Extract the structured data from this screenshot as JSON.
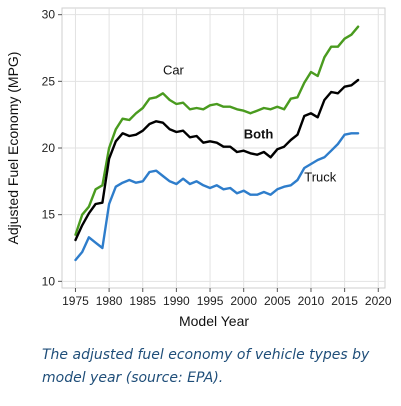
{
  "chart_data": {
    "type": "line",
    "xlabel": "Model Year",
    "ylabel": "Adjusted Fuel Economy (MPG)",
    "xlim": [
      1973,
      2021
    ],
    "ylim": [
      9.5,
      30.5
    ],
    "xticks": [
      1975,
      1980,
      1985,
      1990,
      1995,
      2000,
      2005,
      2010,
      2015,
      2020
    ],
    "yticks": [
      10,
      15,
      20,
      25,
      30
    ],
    "grid": true,
    "x": [
      1975,
      1976,
      1977,
      1978,
      1979,
      1980,
      1981,
      1982,
      1983,
      1984,
      1985,
      1986,
      1987,
      1988,
      1989,
      1990,
      1991,
      1992,
      1993,
      1994,
      1995,
      1996,
      1997,
      1998,
      1999,
      2000,
      2001,
      2002,
      2003,
      2004,
      2005,
      2006,
      2007,
      2008,
      2009,
      2010,
      2011,
      2012,
      2013,
      2014,
      2015,
      2016,
      2017
    ],
    "series": [
      {
        "name": "Car",
        "color": "#4a9b1f",
        "label_weight": "normal",
        "values": [
          13.5,
          15.0,
          15.6,
          16.9,
          17.2,
          20.0,
          21.4,
          22.2,
          22.1,
          22.6,
          23.0,
          23.7,
          23.8,
          24.1,
          23.6,
          23.3,
          23.4,
          22.9,
          23.0,
          22.9,
          23.2,
          23.3,
          23.1,
          23.1,
          22.9,
          22.8,
          22.6,
          22.8,
          23.0,
          22.9,
          23.1,
          22.9,
          23.7,
          23.8,
          24.9,
          25.7,
          25.4,
          26.8,
          27.6,
          27.6,
          28.2,
          28.5,
          29.1
        ]
      },
      {
        "name": "Both",
        "color": "#000000",
        "label_weight": "bold",
        "values": [
          13.1,
          14.2,
          15.1,
          15.8,
          15.9,
          19.2,
          20.5,
          21.1,
          20.9,
          21.0,
          21.3,
          21.8,
          22.0,
          21.9,
          21.4,
          21.2,
          21.3,
          20.8,
          20.9,
          20.4,
          20.5,
          20.4,
          20.1,
          20.1,
          19.7,
          19.8,
          19.6,
          19.5,
          19.7,
          19.3,
          19.9,
          20.1,
          20.6,
          21.0,
          22.4,
          22.6,
          22.3,
          23.6,
          24.2,
          24.1,
          24.6,
          24.7,
          25.1
        ]
      },
      {
        "name": "Truck",
        "color": "#2e7dcb",
        "label_weight": "normal",
        "values": [
          11.6,
          12.2,
          13.3,
          12.9,
          12.5,
          15.8,
          17.1,
          17.4,
          17.6,
          17.4,
          17.5,
          18.2,
          18.3,
          17.9,
          17.5,
          17.3,
          17.7,
          17.3,
          17.5,
          17.2,
          17.0,
          17.2,
          16.9,
          17.0,
          16.6,
          16.8,
          16.5,
          16.5,
          16.7,
          16.5,
          16.9,
          17.1,
          17.2,
          17.6,
          18.5,
          18.8,
          19.1,
          19.3,
          19.8,
          20.3,
          21.0,
          21.1,
          21.1
        ]
      }
    ]
  },
  "caption": "The adjusted fuel economy of vehicle types by model year (source: EPA)."
}
